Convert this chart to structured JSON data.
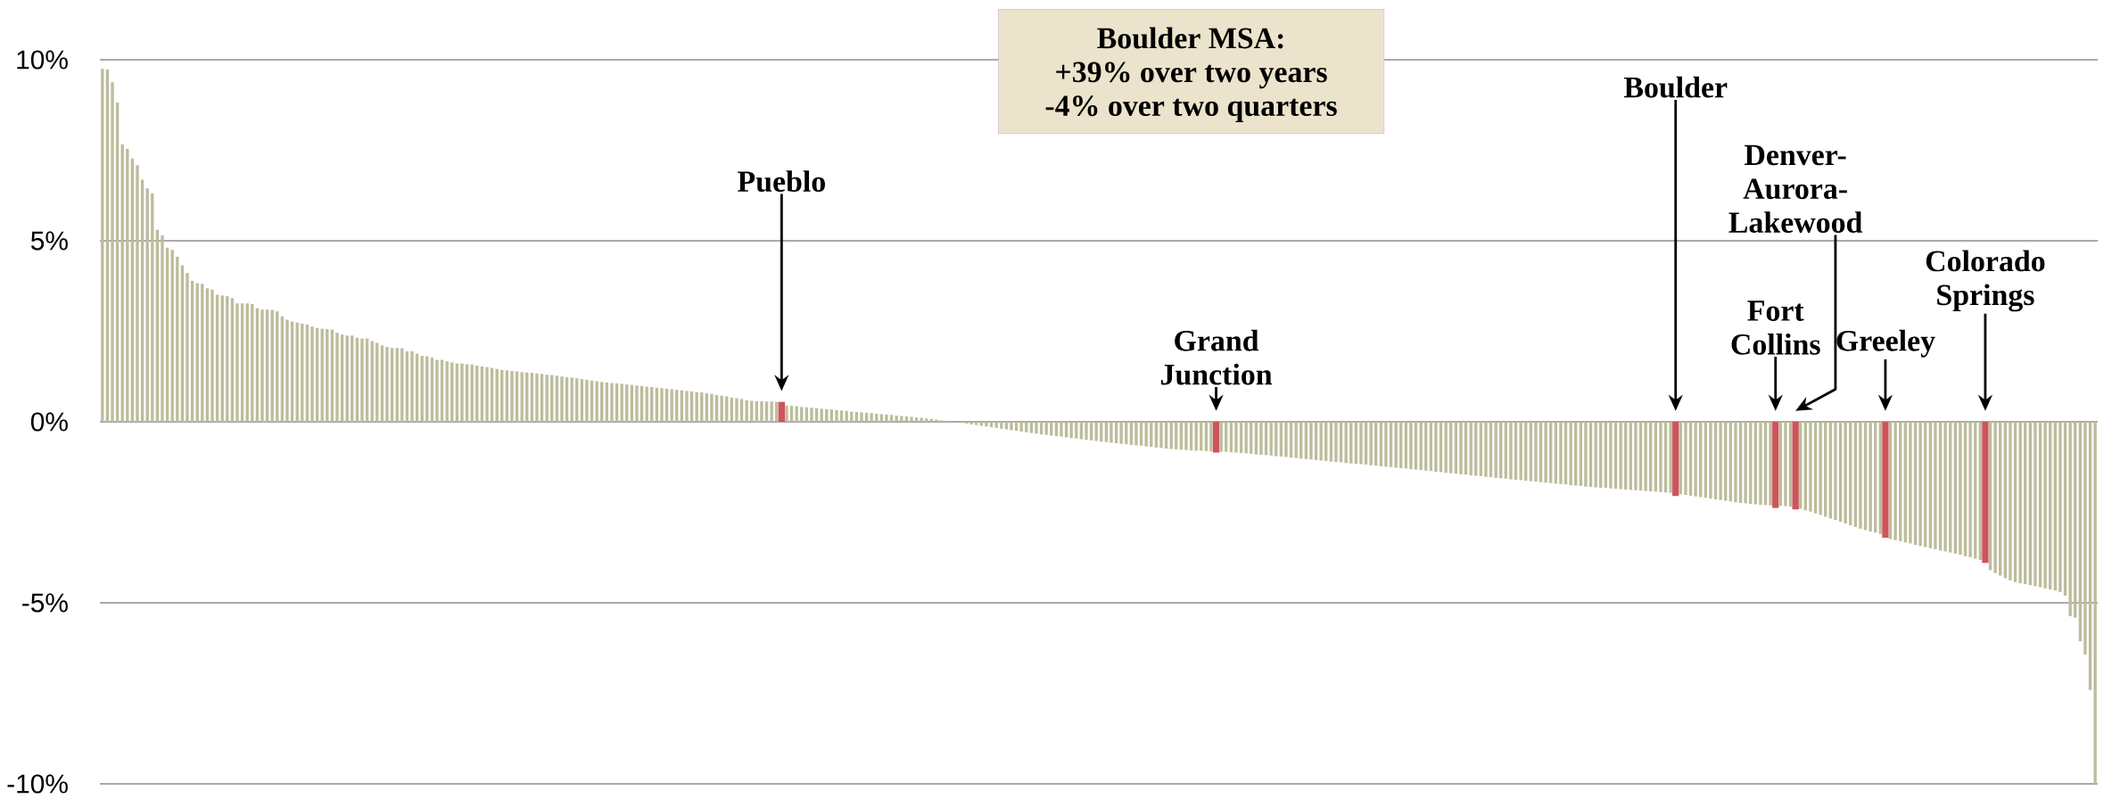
{
  "chart_data": {
    "type": "bar",
    "categories": [
      null,
      null,
      null,
      null,
      null,
      null,
      null,
      null,
      null,
      null,
      null,
      null,
      null,
      null,
      null,
      null,
      null,
      null,
      null,
      null,
      null,
      null,
      null,
      null,
      null,
      null,
      null,
      null,
      null,
      null,
      null,
      null,
      null,
      null,
      null,
      null,
      null,
      null,
      null,
      null,
      null,
      null,
      null,
      null,
      null,
      null,
      null,
      null,
      null,
      null,
      null,
      null,
      null,
      null,
      null,
      null,
      null,
      null,
      null,
      null,
      null,
      null,
      null,
      null,
      null,
      null,
      null,
      null,
      null,
      null,
      null,
      null,
      null,
      null,
      null,
      null,
      null,
      null,
      null,
      null,
      null,
      null,
      null,
      null,
      null,
      null,
      null,
      null,
      null,
      null,
      null,
      null,
      null,
      null,
      null,
      null,
      null,
      null,
      null,
      null,
      null,
      null,
      null,
      null,
      null,
      null,
      null,
      null,
      null,
      null,
      null,
      null,
      null,
      null,
      null,
      null,
      null,
      null,
      null,
      null,
      null,
      null,
      null,
      null,
      null,
      null,
      null,
      null,
      null,
      null,
      null,
      null,
      null,
      null,
      null,
      null,
      "Pueblo",
      null,
      null,
      null,
      null,
      null,
      null,
      null,
      null,
      null,
      null,
      null,
      null,
      null,
      null,
      null,
      null,
      null,
      null,
      null,
      null,
      null,
      null,
      null,
      null,
      null,
      null,
      null,
      null,
      null,
      null,
      null,
      null,
      null,
      null,
      null,
      null,
      null,
      null,
      null,
      null,
      null,
      null,
      null,
      null,
      null,
      null,
      null,
      null,
      null,
      null,
      null,
      null,
      null,
      null,
      null,
      null,
      null,
      null,
      null,
      null,
      null,
      null,
      null,
      null,
      null,
      null,
      null,
      null,
      null,
      null,
      null,
      null,
      null,
      null,
      null,
      null,
      null,
      null,
      null,
      null,
      null,
      null,
      null,
      null,
      null,
      null,
      "Grand Junction",
      null,
      null,
      null,
      null,
      null,
      null,
      null,
      null,
      null,
      null,
      null,
      null,
      null,
      null,
      null,
      null,
      null,
      null,
      null,
      null,
      null,
      null,
      null,
      null,
      null,
      null,
      null,
      null,
      null,
      null,
      null,
      null,
      null,
      null,
      null,
      null,
      null,
      null,
      null,
      null,
      null,
      null,
      null,
      null,
      null,
      null,
      null,
      null,
      null,
      null,
      null,
      null,
      null,
      null,
      null,
      null,
      null,
      null,
      null,
      null,
      null,
      null,
      null,
      null,
      null,
      null,
      null,
      null,
      null,
      null,
      null,
      null,
      null,
      null,
      null,
      null,
      null,
      null,
      null,
      null,
      null,
      null,
      null,
      null,
      null,
      null,
      null,
      null,
      null,
      null,
      null,
      "Boulder",
      null,
      null,
      null,
      null,
      null,
      null,
      null,
      null,
      null,
      null,
      null,
      null,
      null,
      null,
      null,
      null,
      null,
      null,
      null,
      "Fort Collins",
      null,
      null,
      null,
      "Denver-Aurora-Lakewood",
      null,
      null,
      null,
      null,
      null,
      null,
      null,
      null,
      null,
      null,
      null,
      null,
      null,
      null,
      null,
      null,
      null,
      "Greeley",
      null,
      null,
      null,
      null,
      null,
      null,
      null,
      null,
      null,
      null,
      null,
      null,
      null,
      null,
      null,
      null,
      null,
      null,
      null,
      "Colorado Springs",
      null,
      null,
      null,
      null,
      null,
      null,
      null,
      null,
      null,
      null,
      null,
      null,
      null,
      null,
      null,
      null,
      null,
      null,
      null,
      null,
      null,
      null
    ],
    "values": [
      9.75,
      9.73,
      9.38,
      8.82,
      7.66,
      7.54,
      7.27,
      7.09,
      6.69,
      6.45,
      6.31,
      5.3,
      5.15,
      4.81,
      4.75,
      4.56,
      4.32,
      4.11,
      3.89,
      3.83,
      3.81,
      3.69,
      3.65,
      3.51,
      3.49,
      3.47,
      3.42,
      3.27,
      3.27,
      3.27,
      3.25,
      3.14,
      3.1,
      3.1,
      3.09,
      3.05,
      2.91,
      2.82,
      2.77,
      2.74,
      2.71,
      2.69,
      2.63,
      2.59,
      2.57,
      2.56,
      2.55,
      2.46,
      2.41,
      2.38,
      2.38,
      2.32,
      2.3,
      2.3,
      2.23,
      2.18,
      2.11,
      2.07,
      2.04,
      2.04,
      2.03,
      1.95,
      1.95,
      1.88,
      1.82,
      1.81,
      1.77,
      1.71,
      1.71,
      1.67,
      1.64,
      1.61,
      1.61,
      1.59,
      1.58,
      1.55,
      1.53,
      1.51,
      1.49,
      1.46,
      1.43,
      1.42,
      1.4,
      1.39,
      1.37,
      1.36,
      1.35,
      1.33,
      1.32,
      1.3,
      1.29,
      1.27,
      1.25,
      1.23,
      1.22,
      1.2,
      1.18,
      1.16,
      1.14,
      1.12,
      1.1,
      1.09,
      1.07,
      1.06,
      1.05,
      1.03,
      1.02,
      1.0,
      0.99,
      0.97,
      0.96,
      0.94,
      0.93,
      0.91,
      0.9,
      0.88,
      0.87,
      0.85,
      0.84,
      0.82,
      0.81,
      0.79,
      0.77,
      0.74,
      0.72,
      0.7,
      0.67,
      0.65,
      0.63,
      0.6,
      0.58,
      0.57,
      0.57,
      0.56,
      0.56,
      0.55,
      0.55,
      0.45,
      0.44,
      0.43,
      0.41,
      0.4,
      0.39,
      0.38,
      0.36,
      0.35,
      0.34,
      0.32,
      0.31,
      0.3,
      0.28,
      0.27,
      0.26,
      0.25,
      0.24,
      0.22,
      0.21,
      0.2,
      0.19,
      0.17,
      0.16,
      0.15,
      0.14,
      0.12,
      0.11,
      0.09,
      0.08,
      0.06,
      0.04,
      0.03,
      null,
      null,
      -0.03,
      -0.05,
      -0.07,
      -0.09,
      -0.11,
      -0.13,
      -0.15,
      -0.17,
      -0.19,
      -0.21,
      -0.23,
      -0.25,
      -0.27,
      -0.29,
      -0.31,
      -0.33,
      -0.35,
      -0.36,
      -0.38,
      -0.4,
      -0.41,
      -0.43,
      -0.45,
      -0.46,
      -0.48,
      -0.5,
      -0.51,
      -0.53,
      -0.55,
      -0.56,
      -0.58,
      -0.59,
      -0.61,
      -0.62,
      -0.64,
      -0.65,
      -0.66,
      -0.68,
      -0.69,
      -0.71,
      -0.72,
      -0.74,
      -0.75,
      -0.76,
      -0.77,
      -0.78,
      -0.79,
      -0.8,
      -0.8,
      -0.81,
      -0.82,
      -0.85,
      -0.83,
      -0.83,
      -0.84,
      -0.85,
      -0.86,
      -0.87,
      -0.88,
      -0.9,
      -0.91,
      -0.92,
      -0.93,
      -0.95,
      -0.96,
      -0.97,
      -0.99,
      -1.0,
      -1.02,
      -1.03,
      -1.04,
      -1.06,
      -1.07,
      -1.08,
      -1.1,
      -1.11,
      -1.12,
      -1.14,
      -1.15,
      -1.16,
      -1.17,
      -1.18,
      -1.2,
      -1.21,
      -1.23,
      -1.24,
      -1.25,
      -1.27,
      -1.28,
      -1.29,
      -1.31,
      -1.32,
      -1.33,
      -1.35,
      -1.36,
      -1.38,
      -1.39,
      -1.41,
      -1.42,
      -1.43,
      -1.45,
      -1.46,
      -1.48,
      -1.49,
      -1.5,
      -1.52,
      -1.53,
      -1.55,
      -1.56,
      -1.57,
      -1.59,
      -1.6,
      -1.61,
      -1.63,
      -1.64,
      -1.65,
      -1.67,
      -1.68,
      -1.69,
      -1.71,
      -1.72,
      -1.73,
      -1.75,
      -1.76,
      -1.77,
      -1.79,
      -1.8,
      -1.81,
      -1.82,
      -1.83,
      -1.84,
      -1.85,
      -1.86,
      -1.87,
      -1.88,
      -1.89,
      -1.9,
      -1.91,
      -1.92,
      -1.93,
      -1.94,
      -1.95,
      -1.96,
      -2.05,
      -2.0,
      -2.02,
      -2.04,
      -2.06,
      -2.08,
      -2.1,
      -2.12,
      -2.14,
      -2.16,
      -2.18,
      -2.2,
      -2.22,
      -2.24,
      -2.25,
      -2.27,
      -2.28,
      -2.29,
      -2.3,
      -2.31,
      -2.38,
      -2.32,
      -2.33,
      -2.34,
      -2.42,
      -2.4,
      -2.44,
      -2.48,
      -2.53,
      -2.57,
      -2.62,
      -2.67,
      -2.71,
      -2.76,
      -2.81,
      -2.86,
      -2.9,
      -2.95,
      -2.99,
      -3.03,
      -3.06,
      -3.1,
      -3.2,
      -3.24,
      -3.27,
      -3.3,
      -3.33,
      -3.36,
      -3.4,
      -3.43,
      -3.46,
      -3.49,
      -3.52,
      -3.55,
      -3.58,
      -3.61,
      -3.64,
      -3.67,
      -3.71,
      -3.74,
      -3.78,
      -3.82,
      -3.9,
      -4.1,
      -4.18,
      -4.25,
      -4.32,
      -4.38,
      -4.43,
      -4.46,
      -4.48,
      -4.51,
      -4.54,
      -4.57,
      -4.6,
      -4.63,
      -4.66,
      -4.7,
      -4.8,
      -5.37,
      -5.41,
      -6.06,
      -6.43,
      -7.41,
      -10.0
    ],
    "colors": [
      "#bdbc9c",
      "#bdbc9c",
      "#bdbc9c",
      "#bdbc9c",
      "#bdbc9c",
      "#bdbc9c",
      "#bdbc9c",
      "#bdbc9c",
      "#bdbc9c",
      "#bdbc9c",
      "#bdbc9c",
      "#bdbc9c",
      "#bdbc9c",
      "#bdbc9c",
      "#bdbc9c",
      "#bdbc9c",
      "#bdbc9c",
      "#bdbc9c",
      "#bdbc9c",
      "#bdbc9c",
      "#bdbc9c",
      "#bdbc9c",
      "#bdbc9c",
      "#bdbc9c",
      "#bdbc9c",
      "#bdbc9c",
      "#bdbc9c",
      "#bdbc9c",
      "#bdbc9c",
      "#bdbc9c",
      "#bdbc9c",
      "#bdbc9c",
      "#bdbc9c",
      "#bdbc9c",
      "#bdbc9c",
      "#bdbc9c",
      "#bdbc9c",
      "#bdbc9c",
      "#bdbc9c",
      "#bdbc9c",
      "#bdbc9c",
      "#bdbc9c",
      "#bdbc9c",
      "#bdbc9c",
      "#bdbc9c",
      "#bdbc9c",
      "#bdbc9c",
      "#bdbc9c",
      "#bdbc9c",
      "#bdbc9c",
      "#bdbc9c",
      "#bdbc9c",
      "#bdbc9c",
      "#bdbc9c",
      "#bdbc9c",
      "#bdbc9c",
      "#bdbc9c",
      "#bdbc9c",
      "#bdbc9c",
      "#bdbc9c",
      "#bdbc9c",
      "#bdbc9c",
      "#bdbc9c",
      "#bdbc9c",
      "#bdbc9c",
      "#bdbc9c",
      "#bdbc9c",
      "#bdbc9c",
      "#bdbc9c",
      "#bdbc9c",
      "#bdbc9c",
      "#bdbc9c",
      "#bdbc9c",
      "#bdbc9c",
      "#bdbc9c",
      "#bdbc9c",
      "#bdbc9c",
      "#bdbc9c",
      "#bdbc9c",
      "#bdbc9c",
      "#bdbc9c",
      "#bdbc9c",
      "#bdbc9c",
      "#bdbc9c",
      "#bdbc9c",
      "#bdbc9c",
      "#bdbc9c",
      "#bdbc9c",
      "#bdbc9c",
      "#bdbc9c",
      "#bdbc9c",
      "#bdbc9c",
      "#bdbc9c",
      "#bdbc9c",
      "#bdbc9c",
      "#bdbc9c",
      "#bdbc9c",
      "#bdbc9c",
      "#bdbc9c",
      "#bdbc9c",
      "#bdbc9c",
      "#bdbc9c",
      "#bdbc9c",
      "#bdbc9c",
      "#bdbc9c",
      "#bdbc9c",
      "#bdbc9c",
      "#bdbc9c",
      "#bdbc9c",
      "#bdbc9c",
      "#bdbc9c",
      "#bdbc9c",
      "#bdbc9c",
      "#bdbc9c",
      "#bdbc9c",
      "#bdbc9c",
      "#bdbc9c",
      "#bdbc9c",
      "#bdbc9c",
      "#bdbc9c",
      "#bdbc9c",
      "#bdbc9c",
      "#bdbc9c",
      "#bdbc9c",
      "#bdbc9c",
      "#bdbc9c",
      "#bdbc9c",
      "#bdbc9c",
      "#bdbc9c",
      "#bdbc9c",
      "#bdbc9c",
      "#bdbc9c",
      "#bdbc9c",
      "#bdbc9c",
      "#bdbc9c",
      "#bdbc9c",
      "#cd545b",
      "#bdbc9c",
      "#bdbc9c",
      "#bdbc9c",
      "#bdbc9c",
      "#bdbc9c",
      "#bdbc9c",
      "#bdbc9c",
      "#bdbc9c",
      "#bdbc9c",
      "#bdbc9c",
      "#bdbc9c",
      "#bdbc9c",
      "#bdbc9c",
      "#bdbc9c",
      "#bdbc9c",
      "#bdbc9c",
      "#bdbc9c",
      "#bdbc9c",
      "#bdbc9c",
      "#bdbc9c",
      "#bdbc9c",
      "#bdbc9c",
      "#bdbc9c",
      "#bdbc9c",
      "#bdbc9c",
      "#bdbc9c",
      "#bdbc9c",
      "#bdbc9c",
      "#bdbc9c",
      "#bdbc9c",
      "#bdbc9c",
      "#bdbc9c",
      "#bdbc9c",
      "#bdbc9c",
      "#bdbc9c",
      "#bdbc9c",
      "#bdbc9c",
      "#bdbc9c",
      "#bdbc9c",
      "#bdbc9c",
      "#bdbc9c",
      "#bdbc9c",
      "#bdbc9c",
      "#bdbc9c",
      "#bdbc9c",
      "#bdbc9c",
      "#bdbc9c",
      "#bdbc9c",
      "#bdbc9c",
      "#bdbc9c",
      "#bdbc9c",
      "#bdbc9c",
      "#bdbc9c",
      "#bdbc9c",
      "#bdbc9c",
      "#bdbc9c",
      "#bdbc9c",
      "#bdbc9c",
      "#bdbc9c",
      "#bdbc9c",
      "#bdbc9c",
      "#bdbc9c",
      "#bdbc9c",
      "#bdbc9c",
      "#bdbc9c",
      "#bdbc9c",
      "#bdbc9c",
      "#bdbc9c",
      "#bdbc9c",
      "#bdbc9c",
      "#bdbc9c",
      "#bdbc9c",
      "#bdbc9c",
      "#bdbc9c",
      "#bdbc9c",
      "#bdbc9c",
      "#bdbc9c",
      "#bdbc9c",
      "#bdbc9c",
      "#bdbc9c",
      "#bdbc9c",
      "#bdbc9c",
      "#bdbc9c",
      "#bdbc9c",
      "#bdbc9c",
      "#bdbc9c",
      "#cd545b",
      "#bdbc9c",
      "#bdbc9c",
      "#bdbc9c",
      "#bdbc9c",
      "#bdbc9c",
      "#bdbc9c",
      "#bdbc9c",
      "#bdbc9c",
      "#bdbc9c",
      "#bdbc9c",
      "#bdbc9c",
      "#bdbc9c",
      "#bdbc9c",
      "#bdbc9c",
      "#bdbc9c",
      "#bdbc9c",
      "#bdbc9c",
      "#bdbc9c",
      "#bdbc9c",
      "#bdbc9c",
      "#bdbc9c",
      "#bdbc9c",
      "#bdbc9c",
      "#bdbc9c",
      "#bdbc9c",
      "#bdbc9c",
      "#bdbc9c",
      "#bdbc9c",
      "#bdbc9c",
      "#bdbc9c",
      "#bdbc9c",
      "#bdbc9c",
      "#bdbc9c",
      "#bdbc9c",
      "#bdbc9c",
      "#bdbc9c",
      "#bdbc9c",
      "#bdbc9c",
      "#bdbc9c",
      "#bdbc9c",
      "#bdbc9c",
      "#bdbc9c",
      "#bdbc9c",
      "#bdbc9c",
      "#bdbc9c",
      "#bdbc9c",
      "#bdbc9c",
      "#bdbc9c",
      "#bdbc9c",
      "#bdbc9c",
      "#bdbc9c",
      "#bdbc9c",
      "#bdbc9c",
      "#bdbc9c",
      "#bdbc9c",
      "#bdbc9c",
      "#bdbc9c",
      "#bdbc9c",
      "#bdbc9c",
      "#bdbc9c",
      "#bdbc9c",
      "#bdbc9c",
      "#bdbc9c",
      "#bdbc9c",
      "#bdbc9c",
      "#bdbc9c",
      "#bdbc9c",
      "#bdbc9c",
      "#bdbc9c",
      "#bdbc9c",
      "#bdbc9c",
      "#bdbc9c",
      "#bdbc9c",
      "#bdbc9c",
      "#bdbc9c",
      "#bdbc9c",
      "#bdbc9c",
      "#bdbc9c",
      "#bdbc9c",
      "#bdbc9c",
      "#bdbc9c",
      "#bdbc9c",
      "#bdbc9c",
      "#bdbc9c",
      "#bdbc9c",
      "#bdbc9c",
      "#bdbc9c",
      "#bdbc9c",
      "#bdbc9c",
      "#bdbc9c",
      "#bdbc9c",
      "#cd545b",
      "#bdbc9c",
      "#bdbc9c",
      "#bdbc9c",
      "#bdbc9c",
      "#bdbc9c",
      "#bdbc9c",
      "#bdbc9c",
      "#bdbc9c",
      "#bdbc9c",
      "#bdbc9c",
      "#bdbc9c",
      "#bdbc9c",
      "#bdbc9c",
      "#bdbc9c",
      "#bdbc9c",
      "#bdbc9c",
      "#bdbc9c",
      "#bdbc9c",
      "#bdbc9c",
      "#cd545b",
      "#bdbc9c",
      "#bdbc9c",
      "#bdbc9c",
      "#cd545b",
      "#bdbc9c",
      "#bdbc9c",
      "#bdbc9c",
      "#bdbc9c",
      "#bdbc9c",
      "#bdbc9c",
      "#bdbc9c",
      "#bdbc9c",
      "#bdbc9c",
      "#bdbc9c",
      "#bdbc9c",
      "#bdbc9c",
      "#bdbc9c",
      "#bdbc9c",
      "#bdbc9c",
      "#bdbc9c",
      "#bdbc9c",
      "#cd545b",
      "#bdbc9c",
      "#bdbc9c",
      "#bdbc9c",
      "#bdbc9c",
      "#bdbc9c",
      "#bdbc9c",
      "#bdbc9c",
      "#bdbc9c",
      "#bdbc9c",
      "#bdbc9c",
      "#bdbc9c",
      "#bdbc9c",
      "#bdbc9c",
      "#bdbc9c",
      "#bdbc9c",
      "#bdbc9c",
      "#bdbc9c",
      "#bdbc9c",
      "#bdbc9c",
      "#cd545b",
      "#bdbc9c",
      "#bdbc9c",
      "#bdbc9c",
      "#bdbc9c",
      "#bdbc9c",
      "#bdbc9c",
      "#bdbc9c",
      "#bdbc9c",
      "#bdbc9c",
      "#bdbc9c",
      "#bdbc9c",
      "#bdbc9c",
      "#bdbc9c",
      "#bdbc9c",
      "#bdbc9c",
      "#bdbc9c",
      "#bdbc9c",
      "#bdbc9c",
      "#bdbc9c",
      "#bdbc9c",
      "#bdbc9c",
      "#bdbc9c"
    ],
    "ylim": [
      -10,
      10
    ],
    "yticks": [
      {
        "value": 10,
        "label": "10%"
      },
      {
        "value": 5,
        "label": "5%"
      },
      {
        "value": 0,
        "label": "0%"
      },
      {
        "value": -5,
        "label": "-5%"
      },
      {
        "value": -10,
        "label": "-10%"
      }
    ],
    "grid": "y",
    "annotations": [
      "Boulder MSA:",
      "+39% over two years",
      "-4% over two quarters"
    ]
  }
}
